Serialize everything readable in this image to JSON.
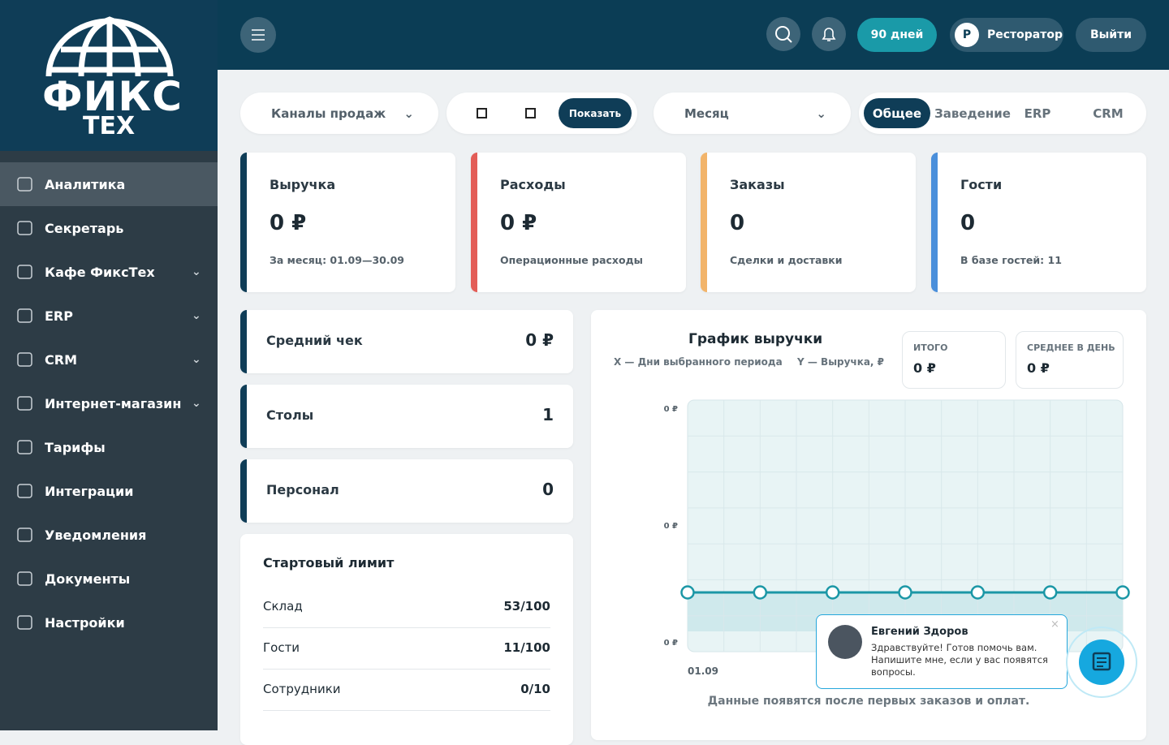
{
  "sidebar": {
    "logo": {
      "line1": "ФИКС",
      "line2": "ТЕХ"
    },
    "menu": [
      {
        "label": "Аналитика",
        "active": true,
        "expandable": false
      },
      {
        "label": "Секретарь",
        "active": false,
        "expandable": false
      },
      {
        "label": "Кафе ФиксТех",
        "active": false,
        "expandable": true
      },
      {
        "label": "ERP",
        "active": false,
        "expandable": true
      },
      {
        "label": "CRM",
        "active": false,
        "expandable": true
      },
      {
        "label": "Интернет-магазин",
        "active": false,
        "expandable": true
      },
      {
        "label": "Тарифы",
        "active": false,
        "expandable": false
      },
      {
        "label": "Интеграции",
        "active": false,
        "expandable": false
      },
      {
        "label": "Уведомления",
        "active": false,
        "expandable": false
      },
      {
        "label": "Документы",
        "active": false,
        "expandable": false
      },
      {
        "label": "Настройки",
        "active": false,
        "expandable": false
      }
    ]
  },
  "header": {
    "period": "90 дней",
    "user_initial": "Р",
    "user": "Ресторатор",
    "logout": "Выйти"
  },
  "filters": {
    "channels": "Каналы продаж",
    "show": "Показать",
    "month": "Месяц",
    "tabs": [
      "Общее",
      "Заведение",
      "ERP",
      "CRM"
    ],
    "active_tab": 0
  },
  "kpis": [
    {
      "title": "Выручка",
      "value": "0 ₽",
      "note": "За месяц: 01.09—30.09",
      "color": "#0f3d57"
    },
    {
      "title": "Расходы",
      "value": "0 ₽",
      "note": "Операционные расходы",
      "color": "#e35d57"
    },
    {
      "title": "Заказы",
      "value": "0",
      "note": "Сделки и доставки",
      "color": "#f2b46a"
    },
    {
      "title": "Гости",
      "value": "0",
      "note": "В базе гостей: 11",
      "color": "#4a8fdb"
    }
  ],
  "stats": [
    {
      "label": "Средний чек",
      "value": "0 ₽"
    },
    {
      "label": "Столы",
      "value": "1"
    },
    {
      "label": "Персонал",
      "value": "0"
    }
  ],
  "limits": {
    "title": "Стартовый лимит",
    "rows": [
      {
        "label": "Склад",
        "value": "53/100"
      },
      {
        "label": "Гости",
        "value": "11/100"
      },
      {
        "label": "Сотрудники",
        "value": "0/10"
      }
    ]
  },
  "chart": {
    "title": "График выручки",
    "x_note": "X — Дни выбранного периода",
    "y_note": "Y — Выручка, ₽",
    "total_label": "ИТОГО",
    "total": "0 ₽",
    "avg_label": "СРЕДНЕЕ В ДЕНЬ",
    "avg": "0 ₽",
    "yticks": [
      "0 ₽",
      "0 ₽",
      "0 ₽"
    ],
    "x_first": "01.09",
    "values": [
      0,
      0,
      0,
      0,
      0,
      0,
      0
    ],
    "empty_note": "Данные появятся после первых заказов и оплат."
  },
  "chat": {
    "name": "Евгений Здоров",
    "message": "Здравствуйте! Готов помочь вам. Напишите мне, если у вас появятся вопросы."
  }
}
